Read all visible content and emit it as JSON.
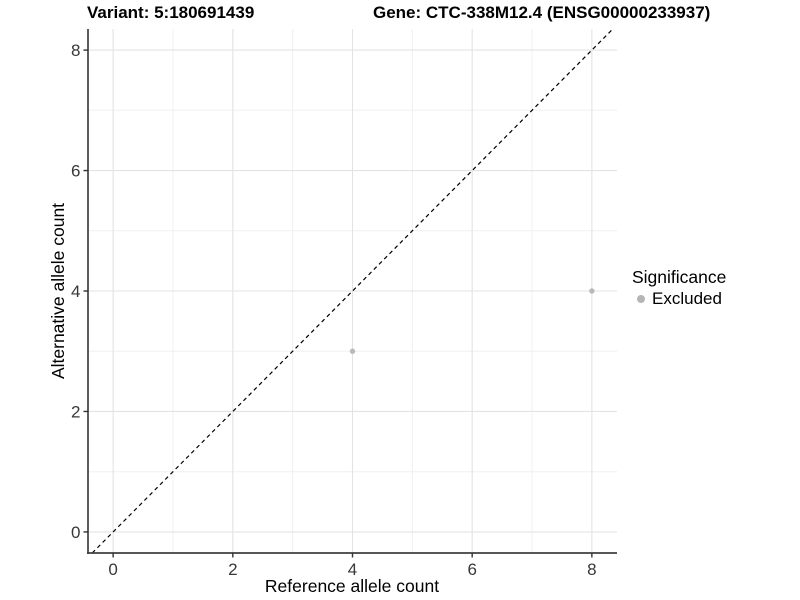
{
  "title": {
    "variant": "Variant: 5:180691439",
    "gene": "Gene: CTC-338M12.4 (ENSG00000233937)"
  },
  "chart_data": {
    "type": "scatter",
    "xlabel": "Reference allele count",
    "ylabel": "Alternative allele count",
    "xlim": [
      -0.42,
      8.42
    ],
    "ylim": [
      -0.35,
      8.35
    ],
    "x_ticks": [
      0,
      2,
      4,
      6,
      8
    ],
    "y_ticks": [
      0,
      2,
      4,
      6,
      8
    ],
    "x_minor_ticks": [
      1,
      3,
      5,
      7
    ],
    "y_minor_ticks": [
      1,
      3,
      5,
      7
    ],
    "grid": true,
    "identity_line": {
      "style": "dashed",
      "slope": 1,
      "intercept": 0,
      "color": "#000000"
    },
    "series": [
      {
        "name": "Excluded",
        "color": "#b9b9b9",
        "points": [
          {
            "x": 4,
            "y": 3
          },
          {
            "x": 8,
            "y": 4
          }
        ]
      }
    ],
    "legend": {
      "title": "Significance",
      "position": "right",
      "items": [
        {
          "label": "Excluded",
          "color": "#b5b5b5"
        }
      ]
    },
    "colors": {
      "background": "#ffffff",
      "panel_background": "#ffffff",
      "grid_major": "#e3e3e3",
      "grid_minor": "#f0f0f0",
      "axis_line": "#3f3f3f",
      "tick_mark": "#333333",
      "tick_label": "#383838",
      "point": "#b9b9b9",
      "dashed_line": "#000000"
    }
  }
}
